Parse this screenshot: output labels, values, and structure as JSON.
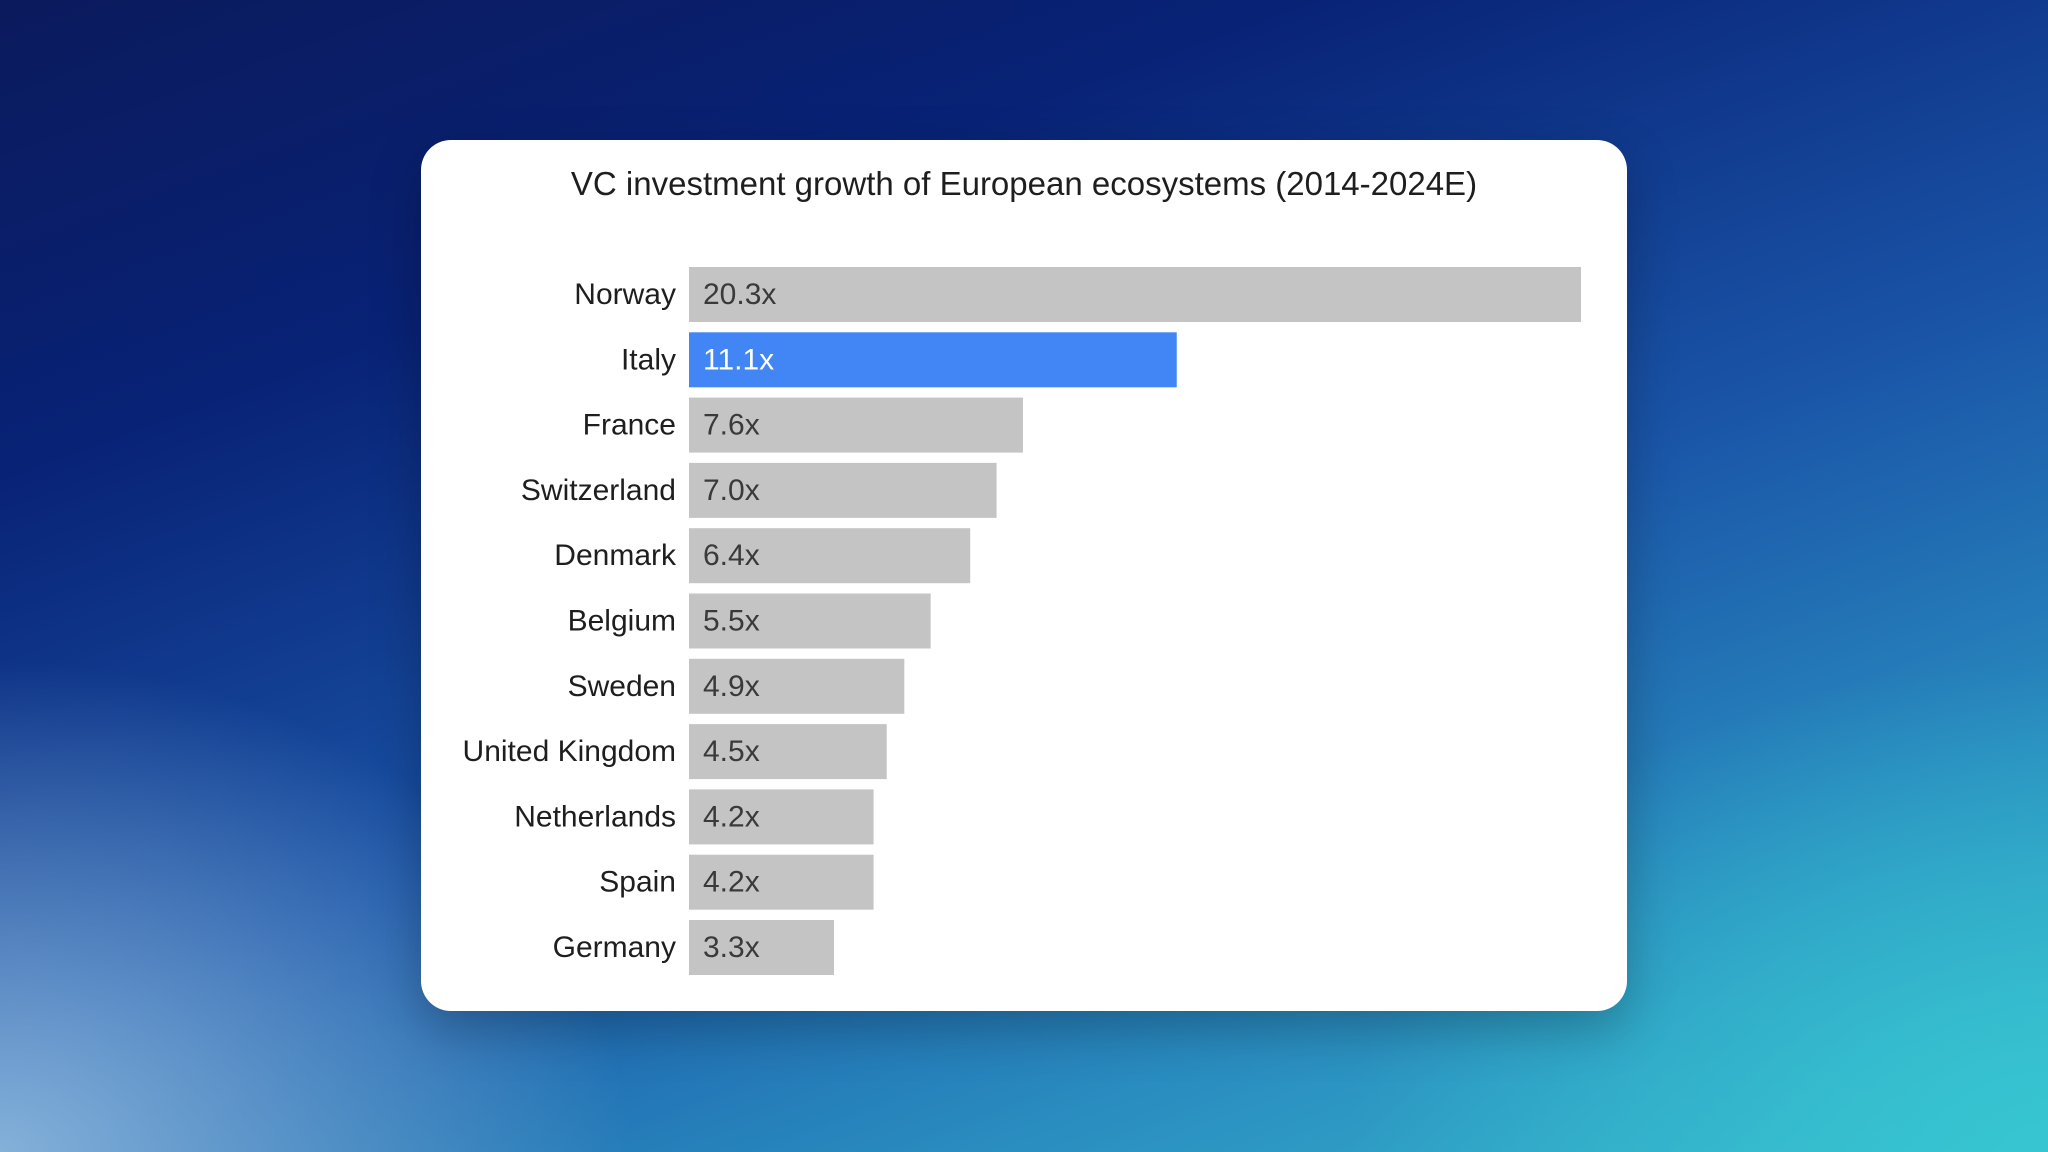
{
  "chart_data": {
    "type": "bar",
    "orientation": "horizontal",
    "title": "VC investment growth of European ecosystems (2014-2024E)",
    "categories": [
      "Norway",
      "Italy",
      "France",
      "Switzerland",
      "Denmark",
      "Belgium",
      "Sweden",
      "United Kingdom",
      "Netherlands",
      "Spain",
      "Germany"
    ],
    "values": [
      20.3,
      11.1,
      7.6,
      7.0,
      6.4,
      5.5,
      4.9,
      4.5,
      4.2,
      4.2,
      3.3
    ],
    "value_labels": [
      "20.3x",
      "11.1x",
      "7.6x",
      "7.0x",
      "6.4x",
      "5.5x",
      "4.9x",
      "4.5x",
      "4.2x",
      "4.2x",
      "3.3x"
    ],
    "highlight": "Italy",
    "colors": {
      "default_bar": "#c4c4c4",
      "highlight_bar": "#4285f4",
      "default_label": "#3a3a3a",
      "highlight_label": "#ffffff"
    },
    "xlim": [
      0,
      20.3
    ],
    "grid": false,
    "xlabel": "",
    "ylabel": ""
  }
}
